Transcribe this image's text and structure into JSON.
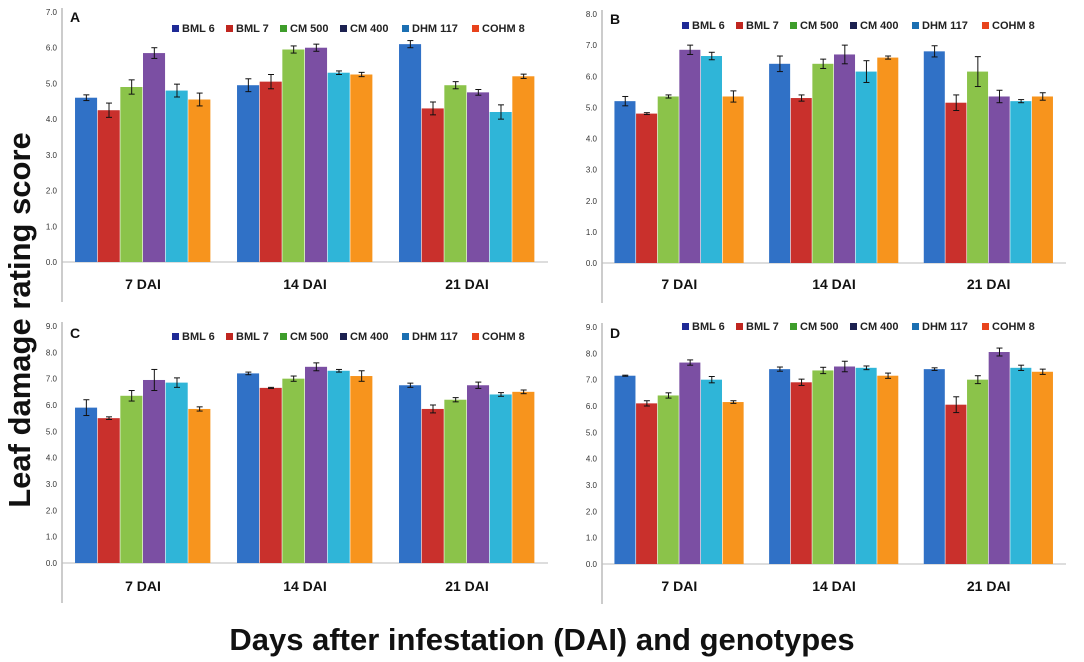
{
  "figure": {
    "ylabel": "Leaf damage rating score",
    "xlabel": "Days after infestation (DAI) and genotypes"
  },
  "legend": [
    {
      "name": "BML 6",
      "bar_color": "#3071c6",
      "swatch_color": "#1f2a96"
    },
    {
      "name": "BML 7",
      "bar_color": "#c9302c",
      "swatch_color": "#c0261f"
    },
    {
      "name": "CM 500",
      "bar_color": "#8bc34a",
      "swatch_color": "#3e9d2b"
    },
    {
      "name": "CM 400",
      "bar_color": "#7b4fa3",
      "swatch_color": "#1c2150"
    },
    {
      "name": "DHM 117",
      "bar_color": "#2fb5d8",
      "swatch_color": "#1b6fb2"
    },
    {
      "name": "COHM 8",
      "bar_color": "#f7941d",
      "swatch_color": "#e8431c"
    }
  ],
  "chart_data": [
    {
      "type": "bar",
      "title": "A",
      "categories": [
        "7 DAI",
        "14 DAI",
        "21 DAI"
      ],
      "ylim": [
        0,
        7
      ],
      "yticks": [
        "0.0",
        "1.0",
        "2.0",
        "3.0",
        "4.0",
        "5.0",
        "6.0",
        "7.0"
      ],
      "series": [
        {
          "name": "BML 6",
          "values": [
            4.6,
            4.95,
            6.1
          ],
          "errors": [
            0.08,
            0.18,
            0.1
          ]
        },
        {
          "name": "BML 7",
          "values": [
            4.25,
            5.05,
            4.3
          ],
          "errors": [
            0.2,
            0.2,
            0.18
          ]
        },
        {
          "name": "CM 500",
          "values": [
            4.9,
            5.95,
            4.95
          ],
          "errors": [
            0.2,
            0.1,
            0.1
          ]
        },
        {
          "name": "CM 400",
          "values": [
            5.85,
            6.0,
            4.75
          ],
          "errors": [
            0.15,
            0.1,
            0.08
          ]
        },
        {
          "name": "DHM 117",
          "values": [
            4.8,
            5.3,
            4.2
          ],
          "errors": [
            0.18,
            0.05,
            0.2
          ]
        },
        {
          "name": "COHM 8",
          "values": [
            4.55,
            5.25,
            5.2
          ],
          "errors": [
            0.18,
            0.06,
            0.06
          ]
        }
      ]
    },
    {
      "type": "bar",
      "title": "B",
      "categories": [
        "7 DAI",
        "14 DAI",
        "21 DAI"
      ],
      "ylim": [
        0,
        8
      ],
      "yticks": [
        "0.0",
        "1.0",
        "2.0",
        "3.0",
        "4.0",
        "5.0",
        "6.0",
        "7.0",
        "8.0"
      ],
      "series": [
        {
          "name": "BML 6",
          "values": [
            5.2,
            6.4,
            6.8
          ],
          "errors": [
            0.15,
            0.25,
            0.18
          ]
        },
        {
          "name": "BML 7",
          "values": [
            4.8,
            5.3,
            5.15
          ],
          "errors": [
            0.03,
            0.1,
            0.25
          ]
        },
        {
          "name": "CM 500",
          "values": [
            5.35,
            6.4,
            6.15
          ],
          "errors": [
            0.05,
            0.15,
            0.48
          ]
        },
        {
          "name": "CM 400",
          "values": [
            6.85,
            6.7,
            5.35
          ],
          "errors": [
            0.15,
            0.3,
            0.2
          ]
        },
        {
          "name": "DHM 117",
          "values": [
            6.65,
            6.15,
            5.2
          ],
          "errors": [
            0.12,
            0.35,
            0.05
          ]
        },
        {
          "name": "COHM 8",
          "values": [
            5.35,
            6.6,
            5.35
          ],
          "errors": [
            0.18,
            0.05,
            0.12
          ]
        }
      ]
    },
    {
      "type": "bar",
      "title": "C",
      "categories": [
        "7 DAI",
        "14 DAI",
        "21 DAI"
      ],
      "ylim": [
        0,
        9
      ],
      "yticks": [
        "0.0",
        "1.0",
        "2.0",
        "3.0",
        "4.0",
        "5.0",
        "6.0",
        "7.0",
        "8.0",
        "9.0"
      ],
      "series": [
        {
          "name": "BML 6",
          "values": [
            5.9,
            7.2,
            6.75
          ],
          "errors": [
            0.3,
            0.05,
            0.08
          ]
        },
        {
          "name": "BML 7",
          "values": [
            5.5,
            6.65,
            5.85
          ],
          "errors": [
            0.05,
            0.02,
            0.15
          ]
        },
        {
          "name": "CM 500",
          "values": [
            6.35,
            7.0,
            6.2
          ],
          "errors": [
            0.2,
            0.1,
            0.08
          ]
        },
        {
          "name": "CM 400",
          "values": [
            6.95,
            7.45,
            6.75
          ],
          "errors": [
            0.4,
            0.15,
            0.12
          ]
        },
        {
          "name": "DHM 117",
          "values": [
            6.85,
            7.3,
            6.4
          ],
          "errors": [
            0.18,
            0.05,
            0.07
          ]
        },
        {
          "name": "COHM 8",
          "values": [
            5.85,
            7.1,
            6.5
          ],
          "errors": [
            0.08,
            0.2,
            0.07
          ]
        }
      ]
    },
    {
      "type": "bar",
      "title": "D",
      "categories": [
        "7 DAI",
        "14 DAI",
        "21 DAI"
      ],
      "ylim": [
        0,
        9
      ],
      "yticks": [
        "0.0",
        "1.0",
        "2.0",
        "3.0",
        "4.0",
        "5.0",
        "6.0",
        "7.0",
        "8.0",
        "9.0"
      ],
      "series": [
        {
          "name": "BML 6",
          "values": [
            7.15,
            7.4,
            7.4
          ],
          "errors": [
            0.02,
            0.08,
            0.05
          ]
        },
        {
          "name": "BML 7",
          "values": [
            6.1,
            6.9,
            6.05
          ],
          "errors": [
            0.1,
            0.12,
            0.3
          ]
        },
        {
          "name": "CM 500",
          "values": [
            6.4,
            7.35,
            7.0
          ],
          "errors": [
            0.1,
            0.12,
            0.15
          ]
        },
        {
          "name": "CM 400",
          "values": [
            7.65,
            7.5,
            8.05
          ],
          "errors": [
            0.1,
            0.2,
            0.15
          ]
        },
        {
          "name": "DHM 117",
          "values": [
            7.0,
            7.45,
            7.45
          ],
          "errors": [
            0.12,
            0.07,
            0.1
          ]
        },
        {
          "name": "COHM 8",
          "values": [
            6.15,
            7.15,
            7.3
          ],
          "errors": [
            0.05,
            0.1,
            0.1
          ]
        }
      ]
    }
  ]
}
